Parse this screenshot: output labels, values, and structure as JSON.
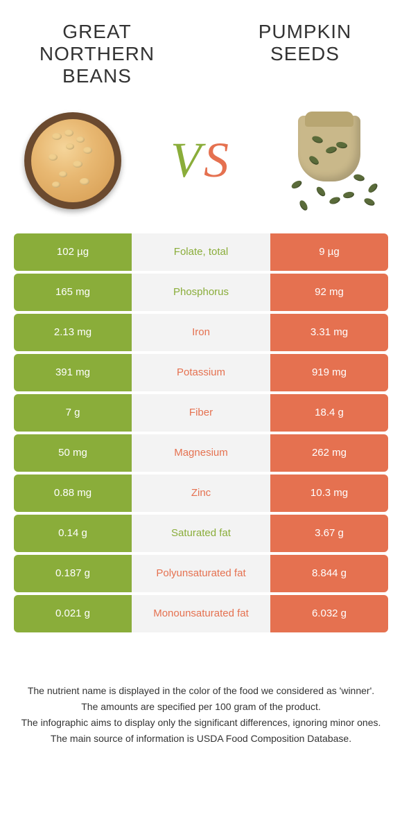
{
  "left_food": {
    "title": "GREAT NORTHERN BEANS"
  },
  "right_food": {
    "title": "PUMPKIN SEEDS"
  },
  "vs": {
    "v": "V",
    "s": "S"
  },
  "colors": {
    "green": "#8aad3a",
    "orange": "#e57150",
    "row_bg": "#f3f3f3",
    "text": "#333333",
    "background": "#ffffff"
  },
  "rows": [
    {
      "name": "Folate, total",
      "left": "102 µg",
      "right": "9 µg",
      "winner": "left"
    },
    {
      "name": "Phosphorus",
      "left": "165 mg",
      "right": "92 mg",
      "winner": "left"
    },
    {
      "name": "Iron",
      "left": "2.13 mg",
      "right": "3.31 mg",
      "winner": "right"
    },
    {
      "name": "Potassium",
      "left": "391 mg",
      "right": "919 mg",
      "winner": "right"
    },
    {
      "name": "Fiber",
      "left": "7 g",
      "right": "18.4 g",
      "winner": "right"
    },
    {
      "name": "Magnesium",
      "left": "50 mg",
      "right": "262 mg",
      "winner": "right"
    },
    {
      "name": "Zinc",
      "left": "0.88 mg",
      "right": "10.3 mg",
      "winner": "right"
    },
    {
      "name": "Saturated fat",
      "left": "0.14 g",
      "right": "3.67 g",
      "winner": "left"
    },
    {
      "name": "Polyunsaturated fat",
      "left": "0.187 g",
      "right": "8.844 g",
      "winner": "right"
    },
    {
      "name": "Monounsaturated fat",
      "left": "0.021 g",
      "right": "6.032 g",
      "winner": "right"
    }
  ],
  "footer": {
    "line1": "The nutrient name is displayed in the color of the food we considered as 'winner'.",
    "line2": "The amounts are specified per 100 gram of the product.",
    "line3": "The infographic aims to display only the significant differences, ignoring minor ones.",
    "line4": "The main source of information is USDA Food Composition Database."
  }
}
